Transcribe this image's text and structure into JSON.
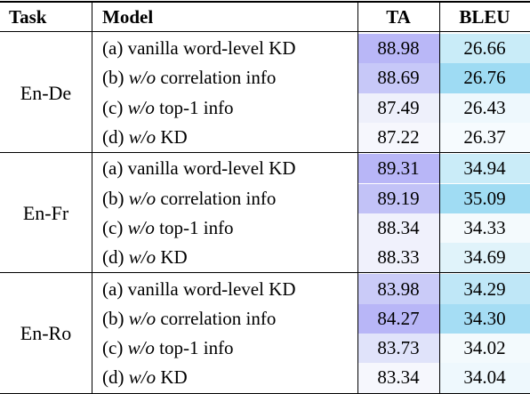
{
  "header": {
    "task": "Task",
    "model": "Model",
    "ta": "TA",
    "bleu": "BLEU"
  },
  "colors": {
    "ta_strong": "#b8b6f7",
    "ta_mid": "#cfd0f8",
    "ta_light": "#e6eafa",
    "ta_faint": "#f1f3fc",
    "bleu_strong": "#9fdcf3",
    "bleu_mid": "#c8ebf8",
    "bleu_light": "#e2f4fb",
    "bleu_faint": "#f0f9fd"
  },
  "groups": [
    {
      "task": "En-De",
      "rows": [
        {
          "prefix": "(a) ",
          "italic": "",
          "model": "vanilla word-level KD",
          "ta": "88.98",
          "bleu": "26.66",
          "ta_color": "#b9b7f7",
          "bleu_color": "#c9ecf8"
        },
        {
          "prefix": "(b) ",
          "italic": "w/o",
          "model": " correlation info",
          "ta": "88.69",
          "bleu": "26.76",
          "ta_color": "#c7c8f8",
          "bleu_color": "#9edbf3"
        },
        {
          "prefix": "(c) ",
          "italic": "w/o",
          "model": " top-1 info",
          "ta": "87.49",
          "bleu": "26.43",
          "ta_color": "#eef0fb",
          "bleu_color": "#eef8fd"
        },
        {
          "prefix": "(d) ",
          "italic": "w/o",
          "model": " KD",
          "ta": "87.22",
          "bleu": "26.37",
          "ta_color": "#f6f7fd",
          "bleu_color": "#f6fbfe"
        }
      ]
    },
    {
      "task": "En-Fr",
      "rows": [
        {
          "prefix": "(a) ",
          "italic": "",
          "model": "vanilla word-level KD",
          "ta": "89.31",
          "bleu": "34.94",
          "ta_color": "#b8b6f7",
          "bleu_color": "#caecf8"
        },
        {
          "prefix": "(b) ",
          "italic": "w/o",
          "model": " correlation info",
          "ta": "89.19",
          "bleu": "35.09",
          "ta_color": "#c2c2f7",
          "bleu_color": "#a0dcf3"
        },
        {
          "prefix": "(c) ",
          "italic": "w/o",
          "model": " top-1 info",
          "ta": "88.34",
          "bleu": "34.33",
          "ta_color": "#f0f1fc",
          "bleu_color": "#f4fafd"
        },
        {
          "prefix": "(d) ",
          "italic": "w/o",
          "model": " KD",
          "ta": "88.33",
          "bleu": "34.69",
          "ta_color": "#f0f1fc",
          "bleu_color": "#e0f3fa"
        }
      ]
    },
    {
      "task": "En-Ro",
      "rows": [
        {
          "prefix": "(a) ",
          "italic": "",
          "model": "vanilla word-level KD",
          "ta": "83.98",
          "bleu": "34.29",
          "ta_color": "#cacbf8",
          "bleu_color": "#bfe7f7"
        },
        {
          "prefix": "(b) ",
          "italic": "w/o",
          "model": " correlation info",
          "ta": "84.27",
          "bleu": "34.30",
          "ta_color": "#b8b6f7",
          "bleu_color": "#a5ddf4"
        },
        {
          "prefix": "(c) ",
          "italic": "w/o",
          "model": " top-1 info",
          "ta": "83.73",
          "bleu": "34.02",
          "ta_color": "#e0e3fa",
          "bleu_color": "#f3fafd"
        },
        {
          "prefix": "(d) ",
          "italic": "w/o",
          "model": " KD",
          "ta": "83.34",
          "bleu": "34.04",
          "ta_color": "#f6f7fd",
          "bleu_color": "#eef8fd"
        }
      ]
    }
  ]
}
